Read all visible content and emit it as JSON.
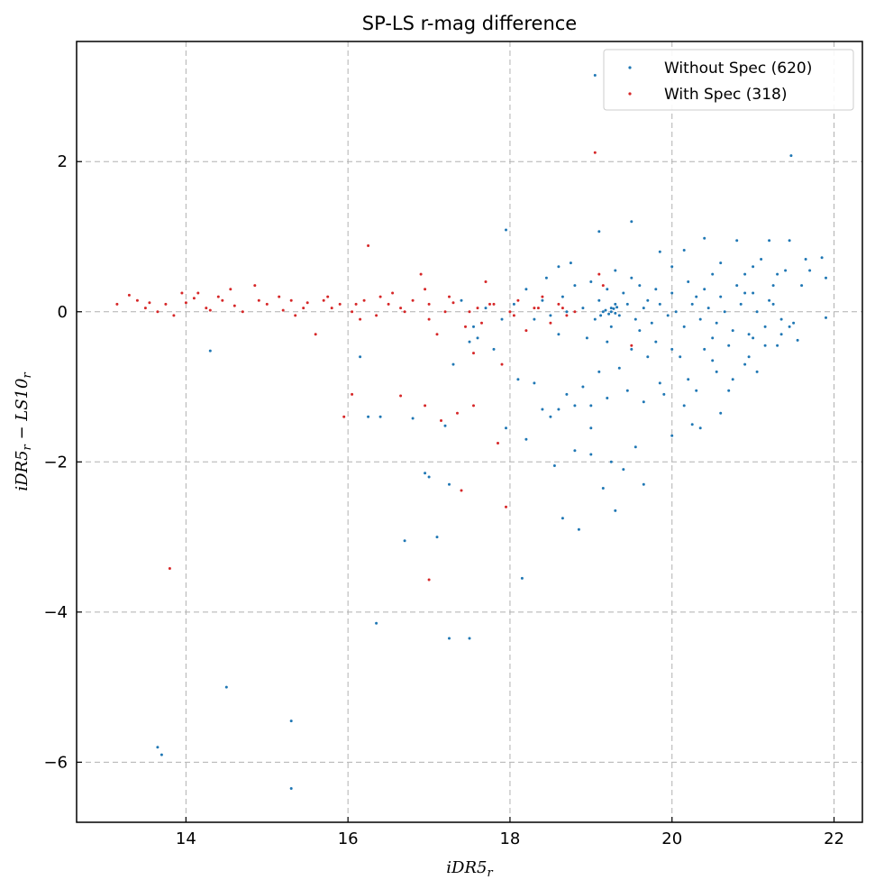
{
  "chart_data": {
    "type": "scatter",
    "title": "SP-LS r-mag difference",
    "xlabel": "iDR5",
    "xlabel_sub": "r",
    "ylabel_parts": [
      "iDR5",
      "r",
      " − LS10",
      "r"
    ],
    "xlim": [
      12.65,
      22.35
    ],
    "ylim": [
      -6.8,
      3.6
    ],
    "xticks": [
      14,
      16,
      18,
      20,
      22
    ],
    "xtick_labels": [
      "14",
      "16",
      "18",
      "20",
      "22"
    ],
    "yticks": [
      -6,
      -4,
      -2,
      0,
      2
    ],
    "ytick_labels": [
      "−6",
      "−4",
      "−2",
      "0",
      "2"
    ],
    "grid": true,
    "legend_position": "top-right",
    "series": [
      {
        "name": "Without Spec (620)",
        "color": "#1f77b4",
        "points": [
          [
            19.05,
            3.15
          ],
          [
            21.47,
            2.08
          ],
          [
            19.5,
            1.2
          ],
          [
            19.1,
            1.07
          ],
          [
            17.95,
            1.09
          ],
          [
            20.4,
            0.98
          ],
          [
            20.8,
            0.95
          ],
          [
            21.2,
            0.95
          ],
          [
            21.45,
            0.95
          ],
          [
            19.85,
            0.8
          ],
          [
            20.15,
            0.82
          ],
          [
            21.65,
            0.7
          ],
          [
            21.85,
            0.72
          ],
          [
            21.7,
            0.55
          ],
          [
            21.9,
            0.45
          ],
          [
            18.6,
            0.6
          ],
          [
            18.75,
            0.65
          ],
          [
            19.3,
            0.55
          ],
          [
            20.6,
            0.65
          ],
          [
            21.0,
            0.6
          ],
          [
            20.9,
            0.5
          ],
          [
            21.3,
            0.5
          ],
          [
            21.6,
            0.35
          ],
          [
            21.9,
            -0.08
          ],
          [
            21.45,
            -0.2
          ],
          [
            21.55,
            -0.38
          ],
          [
            21.3,
            -0.45
          ],
          [
            21.05,
            -0.8
          ],
          [
            20.9,
            -0.7
          ],
          [
            20.75,
            -0.9
          ],
          [
            20.55,
            -0.8
          ],
          [
            20.3,
            -1.05
          ],
          [
            20.15,
            -1.25
          ],
          [
            19.85,
            -0.95
          ],
          [
            19.55,
            -1.8
          ],
          [
            20.0,
            -1.65
          ],
          [
            20.25,
            -1.5
          ],
          [
            19.0,
            -1.55
          ],
          [
            19.25,
            -2.0
          ],
          [
            18.8,
            -1.85
          ],
          [
            19.0,
            -1.9
          ],
          [
            19.15,
            -2.35
          ],
          [
            18.55,
            -2.05
          ],
          [
            18.65,
            -2.75
          ],
          [
            18.85,
            -2.9
          ],
          [
            19.3,
            -2.65
          ],
          [
            19.4,
            -2.1
          ],
          [
            19.65,
            -2.3
          ],
          [
            17.0,
            -2.2
          ],
          [
            17.25,
            -2.3
          ],
          [
            16.95,
            -2.15
          ],
          [
            17.1,
            -3.0
          ],
          [
            16.7,
            -3.05
          ],
          [
            18.15,
            -3.55
          ],
          [
            16.35,
            -4.15
          ],
          [
            17.25,
            -4.35
          ],
          [
            17.5,
            -4.35
          ],
          [
            14.5,
            -5.0
          ],
          [
            15.3,
            -5.45
          ],
          [
            13.65,
            -5.8
          ],
          [
            13.7,
            -5.9
          ],
          [
            15.3,
            -6.35
          ],
          [
            14.3,
            -0.52
          ],
          [
            16.15,
            -0.6
          ],
          [
            16.25,
            -1.4
          ],
          [
            16.4,
            -1.4
          ],
          [
            16.8,
            -1.42
          ],
          [
            17.2,
            -1.52
          ],
          [
            17.95,
            -1.55
          ],
          [
            18.2,
            -1.7
          ],
          [
            18.4,
            -1.3
          ],
          [
            18.6,
            -1.3
          ],
          [
            17.3,
            -0.7
          ],
          [
            17.5,
            -0.4
          ],
          [
            18.3,
            -0.95
          ],
          [
            18.1,
            -0.9
          ],
          [
            17.8,
            -0.5
          ],
          [
            17.6,
            -0.35
          ],
          [
            18.7,
            -1.1
          ],
          [
            18.9,
            -1.0
          ],
          [
            19.1,
            -0.8
          ],
          [
            19.35,
            -0.75
          ],
          [
            19.7,
            -0.6
          ],
          [
            20.0,
            -0.5
          ],
          [
            20.5,
            -0.35
          ],
          [
            18.2,
            0.3
          ],
          [
            18.45,
            0.45
          ],
          [
            18.8,
            0.35
          ],
          [
            19.0,
            0.4
          ],
          [
            19.2,
            0.3
          ],
          [
            19.4,
            0.25
          ],
          [
            19.6,
            0.35
          ],
          [
            19.8,
            0.3
          ],
          [
            20.0,
            0.25
          ],
          [
            20.2,
            0.4
          ],
          [
            20.4,
            0.3
          ],
          [
            20.6,
            0.2
          ],
          [
            20.8,
            0.35
          ],
          [
            21.0,
            0.25
          ],
          [
            21.2,
            0.15
          ],
          [
            18.3,
            -0.1
          ],
          [
            18.5,
            -0.05
          ],
          [
            18.7,
            0.0
          ],
          [
            18.9,
            0.05
          ],
          [
            19.05,
            -0.1
          ],
          [
            19.15,
            0.0
          ],
          [
            19.25,
            0.05
          ],
          [
            19.35,
            -0.05
          ],
          [
            19.45,
            0.1
          ],
          [
            19.55,
            -0.1
          ],
          [
            19.65,
            0.05
          ],
          [
            19.75,
            -0.15
          ],
          [
            19.85,
            0.1
          ],
          [
            19.95,
            -0.05
          ],
          [
            20.05,
            0.0
          ],
          [
            20.15,
            -0.2
          ],
          [
            20.25,
            0.1
          ],
          [
            20.35,
            -0.1
          ],
          [
            20.45,
            0.05
          ],
          [
            20.55,
            -0.15
          ],
          [
            20.65,
            0.0
          ],
          [
            20.75,
            -0.25
          ],
          [
            20.85,
            0.1
          ],
          [
            20.95,
            -0.3
          ],
          [
            21.05,
            0.0
          ],
          [
            21.15,
            -0.2
          ],
          [
            21.25,
            0.1
          ],
          [
            21.35,
            -0.1
          ],
          [
            18.6,
            -0.3
          ],
          [
            18.95,
            -0.35
          ],
          [
            19.2,
            -0.4
          ],
          [
            19.5,
            -0.5
          ],
          [
            19.8,
            -0.4
          ],
          [
            20.1,
            -0.6
          ],
          [
            20.4,
            -0.5
          ],
          [
            20.7,
            -0.45
          ],
          [
            21.0,
            -0.35
          ],
          [
            18.4,
            0.15
          ],
          [
            18.65,
            0.2
          ],
          [
            19.1,
            0.15
          ],
          [
            19.3,
            0.1
          ],
          [
            19.7,
            0.15
          ],
          [
            20.3,
            0.2
          ],
          [
            20.9,
            0.25
          ],
          [
            17.4,
            0.15
          ],
          [
            17.7,
            0.05
          ],
          [
            17.9,
            -0.1
          ],
          [
            18.05,
            0.1
          ],
          [
            17.55,
            -0.2
          ],
          [
            19.25,
            -0.2
          ],
          [
            19.6,
            -0.25
          ],
          [
            20.5,
            -0.65
          ],
          [
            20.2,
            -0.9
          ],
          [
            19.9,
            -1.1
          ],
          [
            19.65,
            -1.2
          ],
          [
            19.45,
            -1.05
          ],
          [
            19.2,
            -1.15
          ],
          [
            19.0,
            -1.25
          ],
          [
            18.8,
            -1.25
          ],
          [
            18.5,
            -1.4
          ],
          [
            20.6,
            -1.35
          ],
          [
            20.35,
            -1.55
          ],
          [
            20.7,
            -1.05
          ],
          [
            20.95,
            -0.6
          ],
          [
            21.15,
            -0.45
          ],
          [
            21.35,
            -0.3
          ],
          [
            21.5,
            -0.15
          ],
          [
            21.25,
            0.35
          ],
          [
            21.4,
            0.55
          ],
          [
            21.1,
            0.7
          ],
          [
            20.5,
            0.5
          ],
          [
            20.0,
            0.6
          ],
          [
            19.5,
            0.45
          ],
          [
            19.25,
            0.0
          ],
          [
            19.3,
            -0.02
          ],
          [
            19.28,
            0.04
          ],
          [
            19.22,
            -0.03
          ],
          [
            19.18,
            0.02
          ],
          [
            19.32,
            0.06
          ],
          [
            19.12,
            -0.05
          ]
        ]
      },
      {
        "name": "With Spec (318)",
        "color": "#d62728",
        "points": [
          [
            19.05,
            2.12
          ],
          [
            13.8,
            -3.42
          ],
          [
            16.25,
            0.88
          ],
          [
            15.95,
            -1.4
          ],
          [
            16.05,
            -1.1
          ],
          [
            16.65,
            -1.12
          ],
          [
            16.95,
            -1.25
          ],
          [
            17.15,
            -1.45
          ],
          [
            17.35,
            -1.35
          ],
          [
            17.55,
            -1.25
          ],
          [
            17.85,
            -1.75
          ],
          [
            17.95,
            -2.6
          ],
          [
            17.4,
            -2.38
          ],
          [
            17.0,
            -3.57
          ],
          [
            13.15,
            0.1
          ],
          [
            13.3,
            0.22
          ],
          [
            13.4,
            0.15
          ],
          [
            13.55,
            0.12
          ],
          [
            13.65,
            0.0
          ],
          [
            13.75,
            0.1
          ],
          [
            13.85,
            -0.05
          ],
          [
            13.95,
            0.25
          ],
          [
            14.1,
            0.18
          ],
          [
            14.25,
            0.05
          ],
          [
            14.4,
            0.2
          ],
          [
            14.55,
            0.3
          ],
          [
            14.7,
            0.0
          ],
          [
            14.85,
            0.35
          ],
          [
            15.0,
            0.1
          ],
          [
            15.15,
            0.2
          ],
          [
            15.3,
            0.15
          ],
          [
            15.45,
            0.05
          ],
          [
            15.6,
            -0.3
          ],
          [
            15.75,
            0.2
          ],
          [
            15.9,
            0.1
          ],
          [
            16.05,
            0.0
          ],
          [
            16.2,
            0.15
          ],
          [
            16.35,
            -0.05
          ],
          [
            16.5,
            0.1
          ],
          [
            16.65,
            0.05
          ],
          [
            16.8,
            0.15
          ],
          [
            16.9,
            0.5
          ],
          [
            17.0,
            0.1
          ],
          [
            17.1,
            -0.3
          ],
          [
            17.2,
            0.0
          ],
          [
            17.3,
            0.12
          ],
          [
            17.45,
            -0.2
          ],
          [
            17.6,
            0.05
          ],
          [
            17.7,
            0.4
          ],
          [
            17.8,
            0.1
          ],
          [
            17.9,
            -0.7
          ],
          [
            18.0,
            0.0
          ],
          [
            18.1,
            0.15
          ],
          [
            18.2,
            -0.25
          ],
          [
            18.3,
            0.05
          ],
          [
            18.4,
            0.2
          ],
          [
            18.5,
            -0.15
          ],
          [
            18.6,
            0.1
          ],
          [
            18.7,
            -0.05
          ],
          [
            18.8,
            0.0
          ],
          [
            19.15,
            0.35
          ],
          [
            19.5,
            -0.45
          ],
          [
            19.1,
            0.5
          ],
          [
            17.55,
            -0.55
          ],
          [
            13.5,
            0.05
          ],
          [
            14.0,
            0.12
          ],
          [
            14.3,
            0.02
          ],
          [
            14.6,
            0.08
          ],
          [
            14.9,
            0.15
          ],
          [
            15.2,
            0.02
          ],
          [
            15.5,
            0.12
          ],
          [
            15.8,
            0.05
          ],
          [
            16.1,
            0.1
          ],
          [
            16.4,
            0.2
          ],
          [
            16.7,
            0.0
          ],
          [
            17.0,
            -0.1
          ],
          [
            17.25,
            0.2
          ],
          [
            17.5,
            0.0
          ],
          [
            17.75,
            0.1
          ],
          [
            18.05,
            -0.05
          ],
          [
            18.35,
            0.05
          ],
          [
            18.65,
            0.05
          ],
          [
            16.55,
            0.25
          ],
          [
            16.15,
            -0.1
          ],
          [
            15.7,
            0.15
          ],
          [
            15.35,
            -0.05
          ],
          [
            14.45,
            0.15
          ],
          [
            14.15,
            0.25
          ],
          [
            16.95,
            0.3
          ],
          [
            17.65,
            -0.15
          ]
        ]
      }
    ]
  }
}
